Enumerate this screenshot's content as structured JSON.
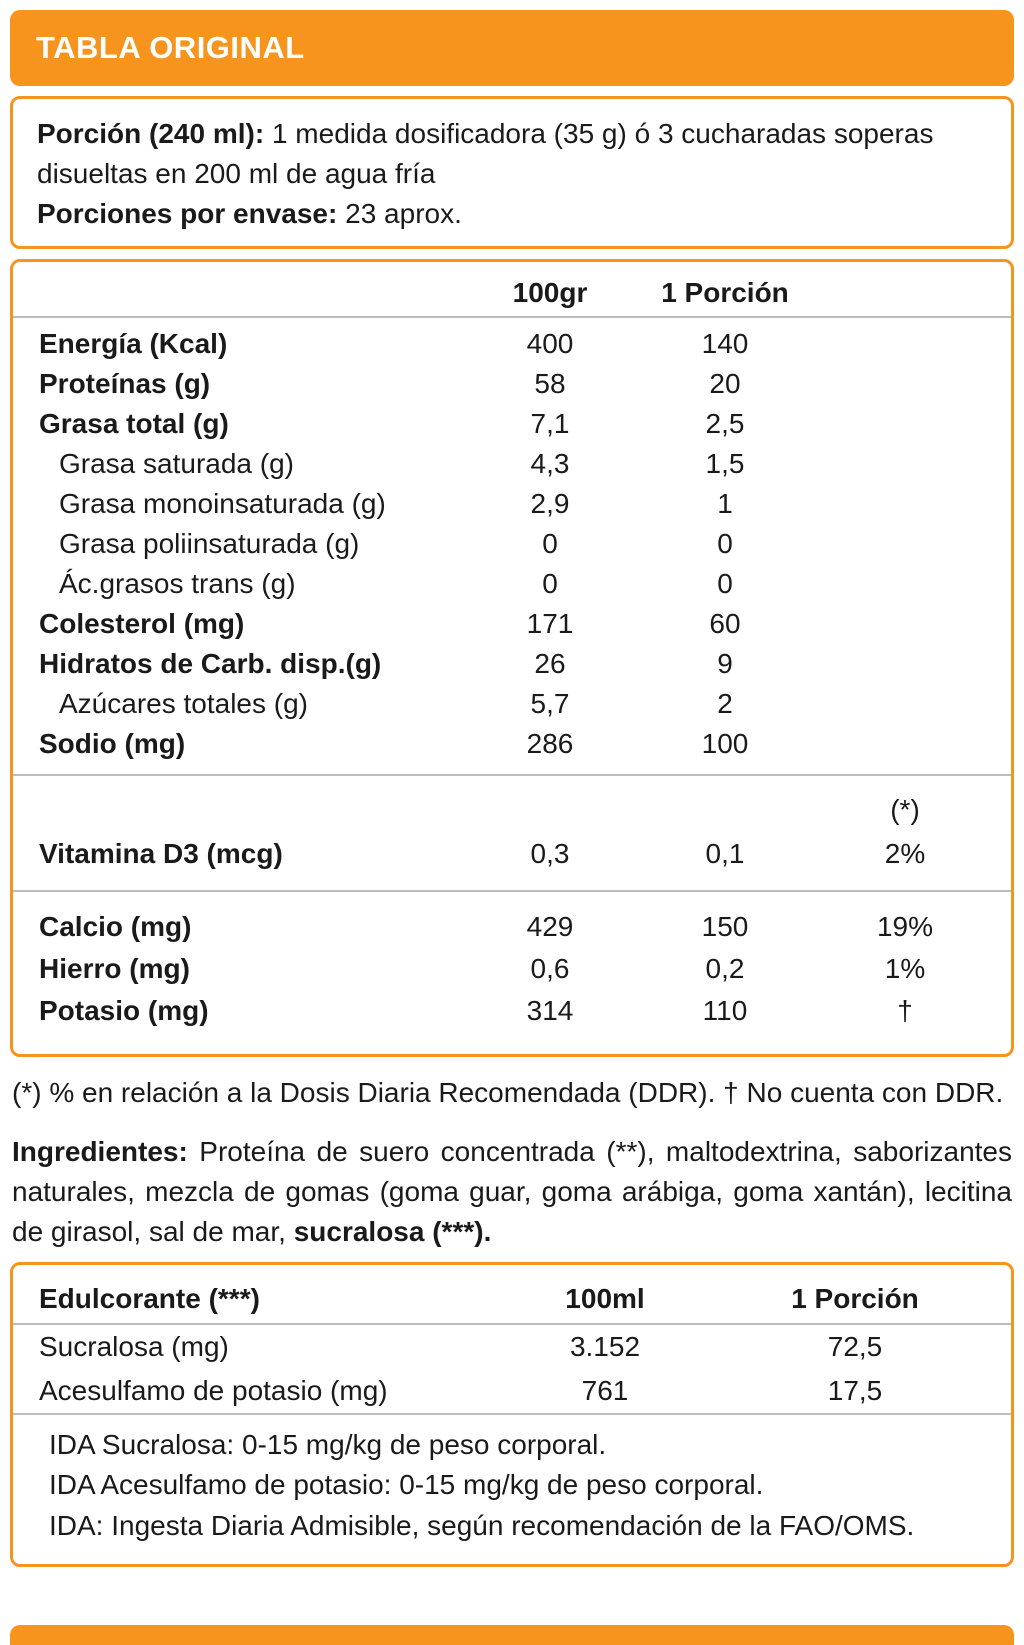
{
  "colors": {
    "accent": "#F7941D",
    "divider": "#BDBDBD",
    "header_text": "#FFFFFF",
    "body_text": "#1A1A1A"
  },
  "header": {
    "title": "TABLA ORIGINAL"
  },
  "serving": {
    "portion_label": "Porción (240 ml):",
    "portion_text": "1 medida dosificadora (35 g) ó 3 cucharadas soperas disueltas en 200 ml de agua fría",
    "servings_label": "Porciones por envase:",
    "servings_text": "23 aprox."
  },
  "nutrition_table": {
    "col_per100": "100gr",
    "col_portion": "1 Porción",
    "ddr_mark": "(*)",
    "rows": [
      {
        "label": "Energía (Kcal)",
        "per100": "400",
        "portion": "140"
      },
      {
        "label": "Proteínas (g)",
        "per100": "58",
        "portion": "20"
      },
      {
        "label": "Grasa total (g)",
        "per100": "7,1",
        "portion": "2,5"
      },
      {
        "label": "Grasa saturada (g)",
        "per100": "4,3",
        "portion": "1,5"
      },
      {
        "label": "Grasa monoinsaturada (g)",
        "per100": "2,9",
        "portion": "1"
      },
      {
        "label": "Grasa poliinsaturada (g)",
        "per100": "0",
        "portion": "0"
      },
      {
        "label": "Ác.grasos trans (g)",
        "per100": "0",
        "portion": "0"
      },
      {
        "label": "Colesterol (mg)",
        "per100": "171",
        "portion": "60"
      },
      {
        "label": "Hidratos de Carb. disp.(g)",
        "per100": "26",
        "portion": "9"
      },
      {
        "label": "Azúcares totales (g)",
        "per100": "5,7",
        "portion": "2"
      },
      {
        "label": "Sodio (mg)",
        "per100": "286",
        "portion": "100"
      }
    ],
    "vitamin_rows": [
      {
        "label": "Vitamina D3 (mcg)",
        "per100": "0,3",
        "portion": "0,1",
        "ddr": "2%"
      }
    ],
    "mineral_rows": [
      {
        "label": "Calcio (mg)",
        "per100": "429",
        "portion": "150",
        "ddr": "19%"
      },
      {
        "label": "Hierro (mg)",
        "per100": "0,6",
        "portion": "0,2",
        "ddr": "1%"
      },
      {
        "label": "Potasio (mg)",
        "per100": "314",
        "portion": "110",
        "ddr": "†"
      }
    ]
  },
  "footnote": "(*) % en relación a la Dosis Diaria Recomendada (DDR). † No cuenta con DDR.",
  "ingredients": {
    "label": "Ingredientes:",
    "text": "Proteína de suero concentrada (**), maltodextrina, saborizantes naturales, mezcla de gomas (goma guar, goma arábiga, goma xantán), lecitina de girasol, sal de mar,",
    "highlight": "sucralosa (***)."
  },
  "sweetener_table": {
    "title": "Edulcorante (***)",
    "col_per100": "100ml",
    "col_portion": "1 Porción",
    "rows": [
      {
        "label": "Sucralosa (mg)",
        "per100": "3.152",
        "portion": "72,5"
      },
      {
        "label": "Acesulfamo de potasio (mg)",
        "per100": "761",
        "portion": "17,5"
      }
    ],
    "notes": [
      "IDA Sucralosa: 0-15 mg/kg de peso corporal.",
      "IDA Acesulfamo de potasio: 0-15 mg/kg de peso corporal.",
      "IDA: Ingesta Diaria Admisible, según recomendación de la FAO/OMS."
    ]
  }
}
